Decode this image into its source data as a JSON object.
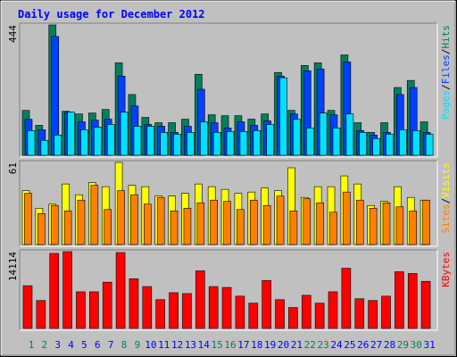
{
  "chart_data": [
    {
      "type": "bar",
      "title": "Daily usage for December 2012",
      "ylim": [
        0,
        444
      ],
      "yticks": [
        444
      ],
      "series": [
        {
          "name": "Hits",
          "color": "#00805c",
          "values": [
            153,
            102,
            444,
            150,
            141,
            144,
            156,
            315,
            207,
            129,
            111,
            111,
            123,
            276,
            138,
            135,
            135,
            123,
            141,
            282,
            153,
            306,
            315,
            153,
            342,
            111,
            78,
            111,
            231,
            255,
            114
          ]
        },
        {
          "name": "Files",
          "color": "#0040ff",
          "values": [
            123,
            87,
            405,
            147,
            114,
            120,
            123,
            270,
            168,
            105,
            99,
            78,
            99,
            225,
            111,
            93,
            114,
            102,
            117,
            270,
            141,
            288,
            294,
            138,
            318,
            84,
            69,
            78,
            207,
            231,
            78
          ]
        },
        {
          "name": "Pages",
          "color": "#00e0ff",
          "values": [
            84,
            51,
            69,
            147,
            87,
            96,
            105,
            147,
            99,
            99,
            78,
            72,
            78,
            114,
            78,
            81,
            81,
            84,
            105,
            264,
            123,
            93,
            144,
            93,
            141,
            78,
            57,
            72,
            87,
            84,
            72
          ]
        }
      ],
      "legend_separator": "/"
    },
    {
      "type": "bar",
      "ylim": [
        0,
        61
      ],
      "yticks": [
        61
      ],
      "series": [
        {
          "name": "Visits",
          "color": "#ffff00",
          "values": [
            40,
            27,
            30,
            45,
            37,
            46,
            43,
            61,
            44,
            43,
            36,
            36,
            38,
            45,
            43,
            41,
            38,
            39,
            42,
            40,
            57,
            35,
            43,
            43,
            51,
            45,
            29,
            32,
            43,
            35,
            33
          ]
        },
        {
          "name": "Sites",
          "color": "#ff8000",
          "values": [
            38,
            23,
            29,
            25,
            33,
            44,
            26,
            40,
            37,
            30,
            35,
            25,
            27,
            31,
            33,
            32,
            26,
            33,
            29,
            36,
            25,
            34,
            31,
            24,
            39,
            33,
            27,
            31,
            28,
            25,
            33
          ]
        }
      ],
      "legend_separator": "/"
    },
    {
      "type": "bar",
      "ylim": [
        0,
        14114
      ],
      "yticks": [
        14114
      ],
      "series": [
        {
          "name": "KBytes",
          "color": "#ff0000",
          "values": [
            7859,
            5132,
            13793,
            14114,
            6736,
            6736,
            8500,
            13953,
            9142,
            7699,
            5293,
            6576,
            6415,
            10586,
            7699,
            7538,
            5934,
            4651,
            8821,
            5293,
            3849,
            6095,
            4651,
            6736,
            11067,
            5453,
            5132,
            5934,
            10425,
            10104,
            8661
          ]
        }
      ],
      "categories": [
        "1",
        "2",
        "3",
        "4",
        "5",
        "6",
        "7",
        "8",
        "9",
        "10",
        "11",
        "12",
        "13",
        "14",
        "15",
        "16",
        "17",
        "18",
        "19",
        "20",
        "21",
        "22",
        "23",
        "24",
        "25",
        "26",
        "27",
        "28",
        "29",
        "30",
        "31"
      ],
      "category_colors": [
        "#00805c",
        "#00805c",
        "#0000ff",
        "#0000ff",
        "#0000ff",
        "#0000ff",
        "#0000ff",
        "#00805c",
        "#00805c",
        "#0000ff",
        "#0000ff",
        "#0000ff",
        "#0000ff",
        "#0000ff",
        "#00805c",
        "#00805c",
        "#0000ff",
        "#0000ff",
        "#0000ff",
        "#0000ff",
        "#0000ff",
        "#00805c",
        "#00805c",
        "#0000ff",
        "#0000ff",
        "#0000ff",
        "#0000ff",
        "#0000ff",
        "#00805c",
        "#00805c",
        "#0000ff"
      ]
    }
  ]
}
